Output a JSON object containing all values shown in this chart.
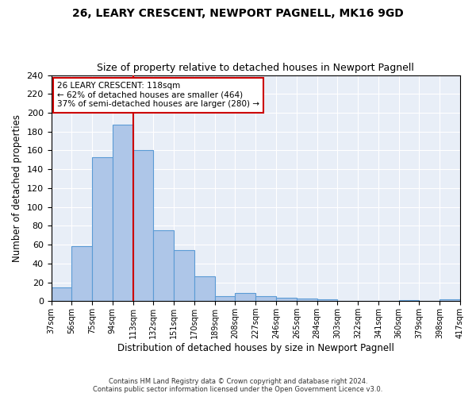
{
  "title": "26, LEARY CRESCENT, NEWPORT PAGNELL, MK16 9GD",
  "subtitle": "Size of property relative to detached houses in Newport Pagnell",
  "xlabel": "Distribution of detached houses by size in Newport Pagnell",
  "ylabel": "Number of detached properties",
  "bar_values": [
    15,
    58,
    153,
    187,
    160,
    75,
    54,
    26,
    5,
    9,
    5,
    4,
    3,
    2,
    0,
    0,
    0,
    1,
    0,
    2
  ],
  "bar_labels": [
    "37sqm",
    "56sqm",
    "75sqm",
    "94sqm",
    "113sqm",
    "132sqm",
    "151sqm",
    "170sqm",
    "189sqm",
    "208sqm",
    "227sqm",
    "246sqm",
    "265sqm",
    "284sqm",
    "303sqm",
    "322sqm",
    "341sqm",
    "360sqm",
    "379sqm",
    "398sqm",
    "417sqm"
  ],
  "bar_color": "#aec6e8",
  "bar_edge_color": "#5b9bd5",
  "vline_x": 4,
  "vline_color": "#cc0000",
  "annotation_title": "26 LEARY CRESCENT: 118sqm",
  "annotation_line2": "← 62% of detached houses are smaller (464)",
  "annotation_line3": "37% of semi-detached houses are larger (280) →",
  "annotation_box_color": "#ffffff",
  "annotation_box_edge_color": "#cc0000",
  "ylim": [
    0,
    240
  ],
  "yticks": [
    0,
    20,
    40,
    60,
    80,
    100,
    120,
    140,
    160,
    180,
    200,
    220,
    240
  ],
  "background_color": "#e8eef7",
  "footer_line1": "Contains HM Land Registry data © Crown copyright and database right 2024.",
  "footer_line2": "Contains public sector information licensed under the Open Government Licence v3.0.",
  "title_fontsize": 10,
  "subtitle_fontsize": 9,
  "xlabel_fontsize": 8.5,
  "ylabel_fontsize": 8.5
}
